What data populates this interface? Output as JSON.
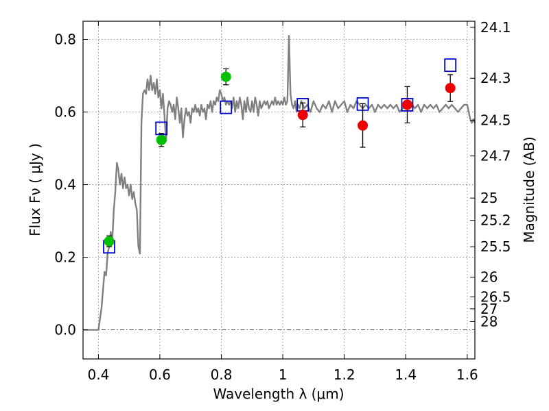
{
  "chart_data": {
    "type": "scatter",
    "xlabel": "Wavelength  λ (μm)",
    "ylabel": "Flux  Fν  ( μJy )",
    "ylabel_right": "Magnitude (AB)",
    "xlim": [
      0.35,
      1.625
    ],
    "ylim": [
      -0.08,
      0.85
    ],
    "x_ticks": [
      0.4,
      0.6,
      0.8,
      1.0,
      1.2,
      1.4,
      1.6
    ],
    "x_tick_labels": [
      "0.4",
      "0.6",
      "0.8",
      "1",
      "1.2",
      "1.4",
      "1.6"
    ],
    "y_ticks": [
      0.0,
      0.2,
      0.4,
      0.6,
      0.8
    ],
    "y_tick_labels": [
      "0.0",
      "0.2",
      "0.4",
      "0.6",
      "0.8"
    ],
    "right_ticks": [
      {
        "label": "24.1",
        "flux": 0.833
      },
      {
        "label": "24.3",
        "flux": 0.693
      },
      {
        "label": "24.5",
        "flux": 0.577
      },
      {
        "label": "24.7",
        "flux": 0.479
      },
      {
        "label": "25",
        "flux": 0.363
      },
      {
        "label": "25.2",
        "flux": 0.302
      },
      {
        "label": "25.5",
        "flux": 0.229
      },
      {
        "label": "26",
        "flux": 0.145
      },
      {
        "label": "26.5",
        "flux": 0.091
      },
      {
        "label": "27",
        "flux": 0.058
      },
      {
        "label": "28",
        "flux": 0.023
      }
    ],
    "grid": true,
    "zero_line": true,
    "colors": {
      "model": "#808080",
      "optical": "#00c000",
      "infrared": "#ee0000",
      "model_boxes": "#0000cc"
    },
    "series": [
      {
        "kind": "line",
        "points": [
          [
            0.35,
            0.0
          ],
          [
            0.4,
            0.0
          ],
          [
            0.41,
            0.06
          ],
          [
            0.415,
            0.11
          ],
          [
            0.42,
            0.16
          ],
          [
            0.425,
            0.15
          ],
          [
            0.43,
            0.21
          ],
          [
            0.435,
            0.23
          ],
          [
            0.44,
            0.27
          ],
          [
            0.445,
            0.24
          ],
          [
            0.45,
            0.33
          ],
          [
            0.455,
            0.38
          ],
          [
            0.46,
            0.46
          ],
          [
            0.465,
            0.44
          ],
          [
            0.47,
            0.4
          ],
          [
            0.475,
            0.43
          ],
          [
            0.48,
            0.39
          ],
          [
            0.485,
            0.42
          ],
          [
            0.49,
            0.39
          ],
          [
            0.495,
            0.4
          ],
          [
            0.5,
            0.37
          ],
          [
            0.505,
            0.4
          ],
          [
            0.51,
            0.36
          ],
          [
            0.515,
            0.38
          ],
          [
            0.52,
            0.35
          ],
          [
            0.525,
            0.33
          ],
          [
            0.53,
            0.23
          ],
          [
            0.535,
            0.21
          ],
          [
            0.54,
            0.57
          ],
          [
            0.545,
            0.65
          ],
          [
            0.55,
            0.66
          ],
          [
            0.555,
            0.65
          ],
          [
            0.56,
            0.69
          ],
          [
            0.565,
            0.66
          ],
          [
            0.57,
            0.7
          ],
          [
            0.575,
            0.66
          ],
          [
            0.58,
            0.68
          ],
          [
            0.585,
            0.65
          ],
          [
            0.59,
            0.69
          ],
          [
            0.595,
            0.64
          ],
          [
            0.6,
            0.66
          ],
          [
            0.605,
            0.61
          ],
          [
            0.61,
            0.65
          ],
          [
            0.615,
            0.59
          ],
          [
            0.62,
            0.52
          ],
          [
            0.625,
            0.61
          ],
          [
            0.63,
            0.63
          ],
          [
            0.635,
            0.62
          ],
          [
            0.64,
            0.6
          ],
          [
            0.645,
            0.62
          ],
          [
            0.65,
            0.58
          ],
          [
            0.655,
            0.64
          ],
          [
            0.66,
            0.61
          ],
          [
            0.665,
            0.57
          ],
          [
            0.67,
            0.61
          ],
          [
            0.675,
            0.53
          ],
          [
            0.68,
            0.58
          ],
          [
            0.685,
            0.61
          ],
          [
            0.69,
            0.59
          ],
          [
            0.695,
            0.6
          ],
          [
            0.7,
            0.57
          ],
          [
            0.705,
            0.61
          ],
          [
            0.71,
            0.6
          ],
          [
            0.715,
            0.62
          ],
          [
            0.72,
            0.6
          ],
          [
            0.725,
            0.61
          ],
          [
            0.73,
            0.59
          ],
          [
            0.735,
            0.62
          ],
          [
            0.74,
            0.6
          ],
          [
            0.745,
            0.61
          ],
          [
            0.75,
            0.58
          ],
          [
            0.755,
            0.62
          ],
          [
            0.76,
            0.61
          ],
          [
            0.765,
            0.63
          ],
          [
            0.77,
            0.6
          ],
          [
            0.775,
            0.63
          ],
          [
            0.78,
            0.62
          ],
          [
            0.785,
            0.64
          ],
          [
            0.79,
            0.63
          ],
          [
            0.795,
            0.66
          ],
          [
            0.8,
            0.65
          ],
          [
            0.805,
            0.63
          ],
          [
            0.81,
            0.64
          ],
          [
            0.815,
            0.62
          ],
          [
            0.82,
            0.63
          ],
          [
            0.825,
            0.62
          ],
          [
            0.83,
            0.63
          ],
          [
            0.835,
            0.61
          ],
          [
            0.84,
            0.64
          ],
          [
            0.845,
            0.6
          ],
          [
            0.85,
            0.63
          ],
          [
            0.855,
            0.61
          ],
          [
            0.86,
            0.64
          ],
          [
            0.865,
            0.62
          ],
          [
            0.87,
            0.58
          ],
          [
            0.875,
            0.63
          ],
          [
            0.88,
            0.6
          ],
          [
            0.885,
            0.64
          ],
          [
            0.89,
            0.61
          ],
          [
            0.895,
            0.6
          ],
          [
            0.9,
            0.63
          ],
          [
            0.905,
            0.6
          ],
          [
            0.91,
            0.64
          ],
          [
            0.915,
            0.62
          ],
          [
            0.92,
            0.59
          ],
          [
            0.925,
            0.63
          ],
          [
            0.93,
            0.61
          ],
          [
            0.935,
            0.62
          ],
          [
            0.94,
            0.63
          ],
          [
            0.945,
            0.62
          ],
          [
            0.95,
            0.63
          ],
          [
            0.955,
            0.61
          ],
          [
            0.96,
            0.62
          ],
          [
            0.965,
            0.63
          ],
          [
            0.97,
            0.62
          ],
          [
            0.975,
            0.64
          ],
          [
            0.98,
            0.62
          ],
          [
            0.985,
            0.63
          ],
          [
            0.99,
            0.62
          ],
          [
            0.995,
            0.63
          ],
          [
            1.0,
            0.62
          ],
          [
            1.005,
            0.64
          ],
          [
            1.01,
            0.62
          ],
          [
            1.015,
            0.63
          ],
          [
            1.02,
            0.81
          ],
          [
            1.025,
            0.65
          ],
          [
            1.03,
            0.62
          ],
          [
            1.035,
            0.61
          ],
          [
            1.04,
            0.63
          ],
          [
            1.045,
            0.6
          ],
          [
            1.05,
            0.62
          ],
          [
            1.055,
            0.61
          ],
          [
            1.06,
            0.63
          ],
          [
            1.07,
            0.61
          ],
          [
            1.08,
            0.62
          ],
          [
            1.09,
            0.6
          ],
          [
            1.1,
            0.63
          ],
          [
            1.11,
            0.61
          ],
          [
            1.12,
            0.6
          ],
          [
            1.13,
            0.62
          ],
          [
            1.14,
            0.61
          ],
          [
            1.15,
            0.63
          ],
          [
            1.16,
            0.6
          ],
          [
            1.17,
            0.63
          ],
          [
            1.18,
            0.61
          ],
          [
            1.19,
            0.62
          ],
          [
            1.2,
            0.63
          ],
          [
            1.21,
            0.6
          ],
          [
            1.22,
            0.62
          ],
          [
            1.23,
            0.61
          ],
          [
            1.24,
            0.63
          ],
          [
            1.25,
            0.62
          ],
          [
            1.26,
            0.61
          ],
          [
            1.27,
            0.62
          ],
          [
            1.28,
            0.61
          ],
          [
            1.29,
            0.62
          ],
          [
            1.3,
            0.6
          ],
          [
            1.31,
            0.62
          ],
          [
            1.32,
            0.61
          ],
          [
            1.33,
            0.62
          ],
          [
            1.34,
            0.61
          ],
          [
            1.35,
            0.62
          ],
          [
            1.36,
            0.61
          ],
          [
            1.37,
            0.62
          ],
          [
            1.38,
            0.6
          ],
          [
            1.39,
            0.61
          ],
          [
            1.4,
            0.62
          ],
          [
            1.41,
            0.61
          ],
          [
            1.42,
            0.62
          ],
          [
            1.43,
            0.61
          ],
          [
            1.44,
            0.62
          ],
          [
            1.45,
            0.6
          ],
          [
            1.46,
            0.62
          ],
          [
            1.47,
            0.61
          ],
          [
            1.48,
            0.62
          ],
          [
            1.49,
            0.61
          ],
          [
            1.5,
            0.62
          ],
          [
            1.51,
            0.6
          ],
          [
            1.52,
            0.61
          ],
          [
            1.53,
            0.62
          ],
          [
            1.54,
            0.61
          ],
          [
            1.55,
            0.62
          ],
          [
            1.56,
            0.61
          ],
          [
            1.57,
            0.6
          ],
          [
            1.58,
            0.61
          ],
          [
            1.59,
            0.62
          ],
          [
            1.595,
            0.62
          ],
          [
            1.6,
            0.62
          ],
          [
            1.605,
            0.6
          ],
          [
            1.61,
            0.58
          ],
          [
            1.615,
            0.57
          ],
          [
            1.62,
            0.58
          ],
          [
            1.625,
            0.57
          ]
        ]
      },
      {
        "kind": "points",
        "marker": "circle",
        "x": [
          0.435,
          0.605,
          0.815
        ],
        "y": [
          0.244,
          0.523,
          0.697
        ],
        "yerr": [
          0.015,
          0.018,
          0.022
        ]
      },
      {
        "kind": "points",
        "marker": "circle",
        "x": [
          1.065,
          1.26,
          1.405,
          1.545
        ],
        "y": [
          0.592,
          0.563,
          0.62,
          0.666
        ],
        "yerr": [
          0.033,
          0.06,
          0.05,
          0.037
        ]
      },
      {
        "kind": "points",
        "marker": "square-open",
        "x": [
          0.435,
          0.605,
          0.815,
          1.065,
          1.26,
          1.405,
          1.545
        ],
        "y": [
          0.229,
          0.555,
          0.613,
          0.62,
          0.622,
          0.62,
          0.729
        ]
      }
    ]
  }
}
